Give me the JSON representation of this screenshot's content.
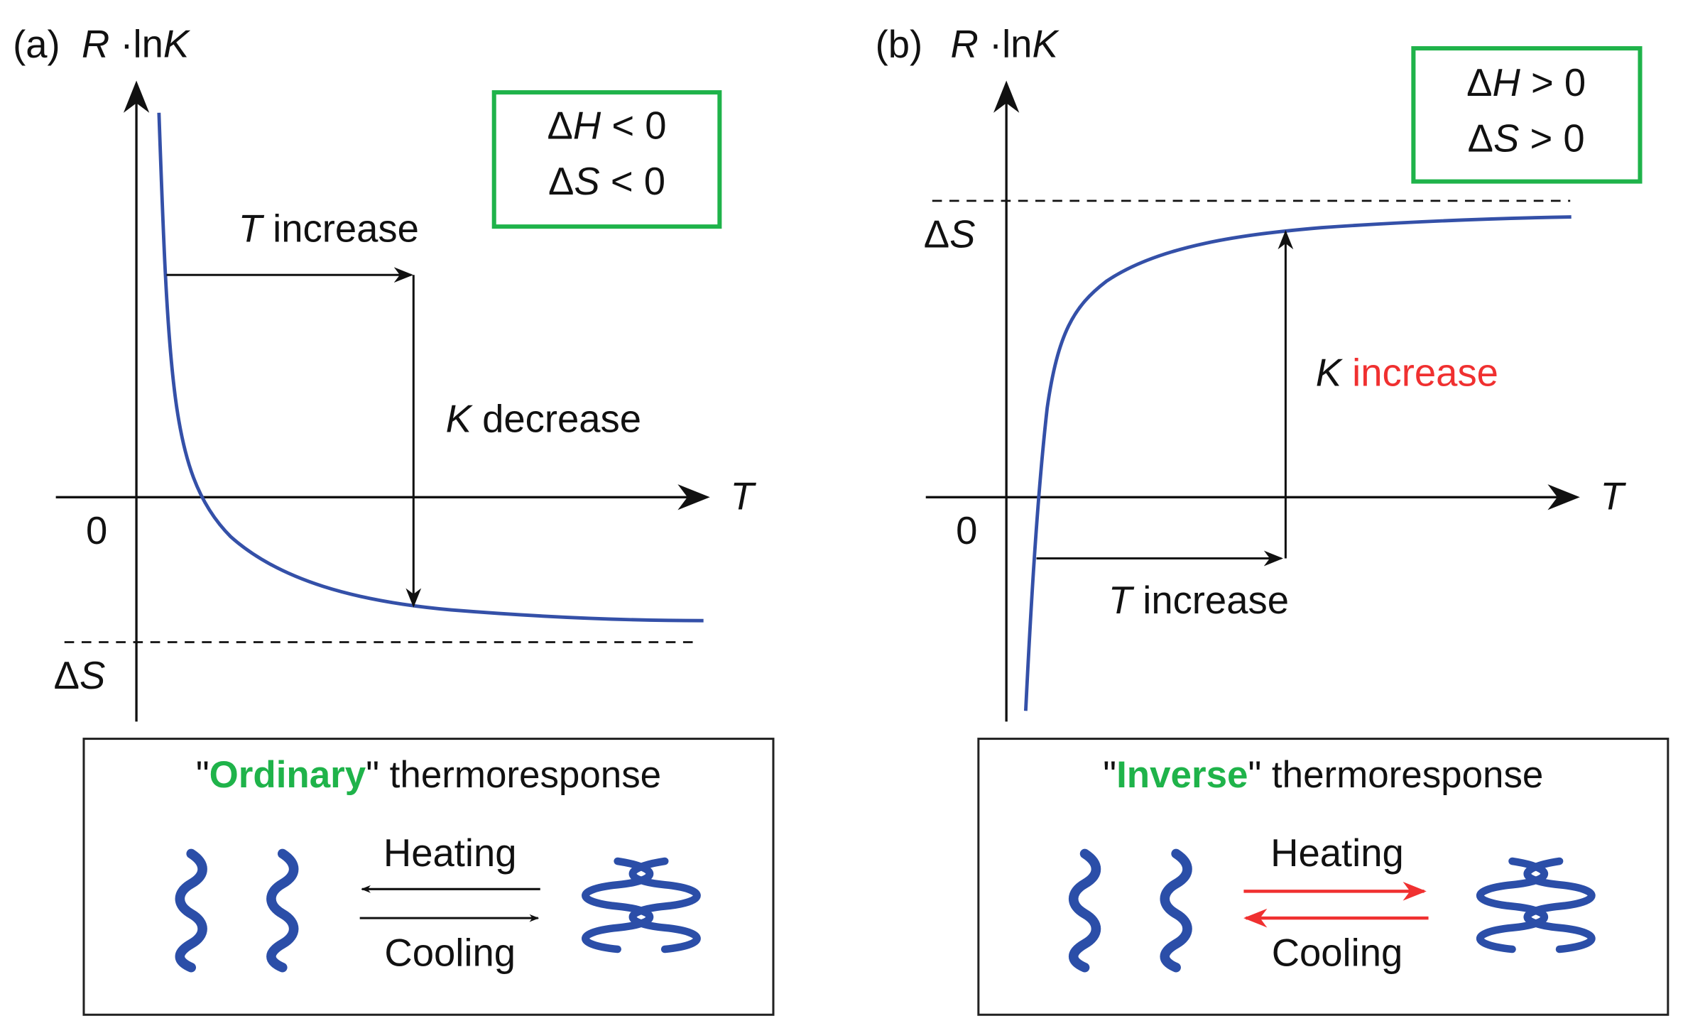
{
  "panels": [
    {
      "label": "(a)",
      "y_axis_label": [
        "R",
        " ·ln",
        "K"
      ],
      "x_axis_label": "T",
      "origin_label": "0",
      "asymptote_label": [
        "Δ",
        "S"
      ],
      "conditions": [
        [
          "Δ",
          "H",
          " < 0"
        ],
        [
          "Δ",
          "S",
          " < 0"
        ]
      ],
      "t_arrow_label": [
        "T",
        " increase"
      ],
      "k_arrow_label": [
        "K",
        " decrease"
      ],
      "box_title": [
        "\"",
        "Ordinary",
        "\" thermoresponse"
      ],
      "heating": "Heating",
      "cooling": "Cooling"
    },
    {
      "label": "(b)",
      "y_axis_label": [
        "R",
        " ·ln",
        "K"
      ],
      "x_axis_label": "T",
      "origin_label": "0",
      "asymptote_label": [
        "Δ",
        "S"
      ],
      "conditions": [
        [
          "Δ",
          "H",
          " > 0"
        ],
        [
          "Δ",
          "S",
          " > 0"
        ]
      ],
      "t_arrow_label": [
        "T",
        " increase"
      ],
      "k_arrow_label": [
        "K",
        " increase"
      ],
      "box_title": [
        "\"",
        "Inverse",
        "\" thermoresponse"
      ],
      "heating": "Heating",
      "cooling": "Cooling"
    }
  ]
}
